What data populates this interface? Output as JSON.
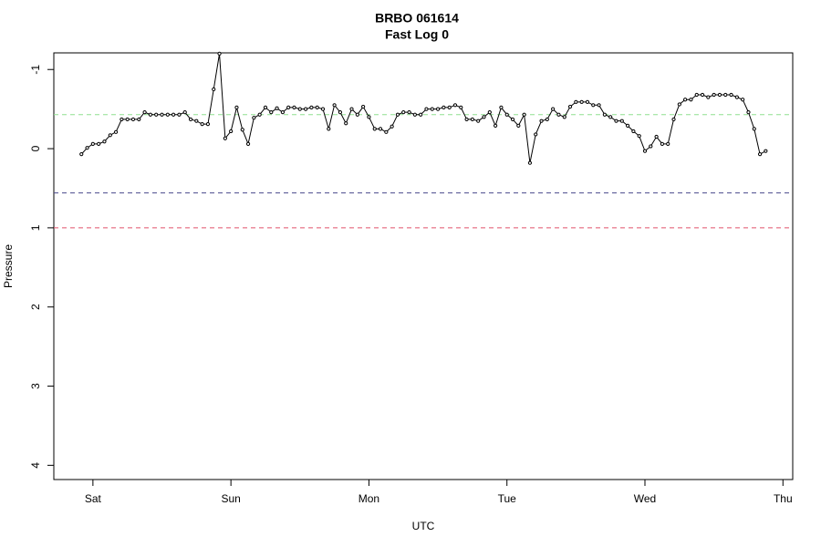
{
  "chart_data": {
    "type": "line",
    "title": "BRBO 061614",
    "subtitle": "Fast Log 0",
    "x_label": "UTC",
    "y_label": "Pressure",
    "xlim": [
      -6.8,
      121.7
    ],
    "xticks": [
      {
        "value": 0,
        "label": "Sat"
      },
      {
        "value": 24,
        "label": "Sun"
      },
      {
        "value": 48,
        "label": "Mon"
      },
      {
        "value": 72,
        "label": "Tue"
      },
      {
        "value": 96,
        "label": "Wed"
      },
      {
        "value": 120,
        "label": "Thu"
      }
    ],
    "ylim": [
      4.18,
      -1.21
    ],
    "yticks": [
      -1,
      0,
      1,
      2,
      3,
      4
    ],
    "hlines": [
      {
        "value": -0.43,
        "color": "#8fe08f"
      },
      {
        "value": 0.56,
        "color": "#4a4a8c"
      },
      {
        "value": 1,
        "color": "#e0506b"
      }
    ],
    "x": [
      -2,
      -1,
      0,
      1,
      2,
      3,
      4,
      5,
      6,
      7,
      8,
      9,
      10,
      11,
      12,
      13,
      14,
      15,
      16,
      17,
      18,
      19,
      20,
      21,
      22,
      23,
      24,
      25,
      26,
      27,
      28,
      29,
      30,
      31,
      32,
      33,
      34,
      35,
      36,
      37,
      38,
      39,
      40,
      41,
      42,
      43,
      44,
      45,
      46,
      47,
      48,
      49,
      50,
      51,
      52,
      53,
      54,
      55,
      56,
      57,
      58,
      59,
      60,
      61,
      62,
      63,
      64,
      65,
      66,
      67,
      68,
      69,
      70,
      71,
      72,
      73,
      74,
      75,
      76,
      77,
      78,
      79,
      80,
      81,
      82,
      83,
      84,
      85,
      86,
      87,
      88,
      89,
      90,
      91,
      92,
      93,
      94,
      95,
      96,
      97,
      98,
      99,
      100,
      101,
      102,
      103,
      104,
      105,
      106,
      107,
      108,
      109,
      110,
      111,
      112,
      113,
      114,
      115,
      116,
      117
    ],
    "series": [
      {
        "color": "#000000",
        "values": [
          0.07,
          -0.01,
          -0.06,
          -0.06,
          -0.09,
          -0.17,
          -0.21,
          -0.37,
          -0.37,
          -0.37,
          -0.37,
          -0.46,
          -0.43,
          -0.43,
          -0.43,
          -0.43,
          -0.43,
          -0.43,
          -0.46,
          -0.37,
          -0.35,
          -0.31,
          -0.31,
          -0.75,
          -1.2,
          -0.13,
          -0.22,
          -0.52,
          -0.24,
          -0.06,
          -0.39,
          -0.43,
          -0.52,
          -0.46,
          -0.51,
          -0.46,
          -0.52,
          -0.52,
          -0.5,
          -0.5,
          -0.52,
          -0.52,
          -0.5,
          -0.25,
          -0.55,
          -0.46,
          -0.32,
          -0.5,
          -0.43,
          -0.53,
          -0.4,
          -0.25,
          -0.25,
          -0.21,
          -0.28,
          -0.43,
          -0.46,
          -0.46,
          -0.43,
          -0.43,
          -0.5,
          -0.5,
          -0.5,
          -0.52,
          -0.52,
          -0.55,
          -0.52,
          -0.37,
          -0.37,
          -0.35,
          -0.4,
          -0.46,
          -0.29,
          -0.52,
          -0.43,
          -0.37,
          -0.29,
          -0.43,
          0.18,
          -0.18,
          -0.35,
          -0.37,
          -0.5,
          -0.43,
          -0.4,
          -0.53,
          -0.59,
          -0.59,
          -0.59,
          -0.55,
          -0.55,
          -0.43,
          -0.4,
          -0.35,
          -0.35,
          -0.29,
          -0.22,
          -0.16,
          0.03,
          -0.03,
          -0.15,
          -0.06,
          -0.06,
          -0.37,
          -0.56,
          -0.62,
          -0.62,
          -0.68,
          -0.68,
          -0.65,
          -0.68,
          -0.68,
          -0.68,
          -0.68,
          -0.65,
          -0.62,
          -0.46,
          -0.25,
          0.07,
          0.03
        ]
      }
    ]
  }
}
